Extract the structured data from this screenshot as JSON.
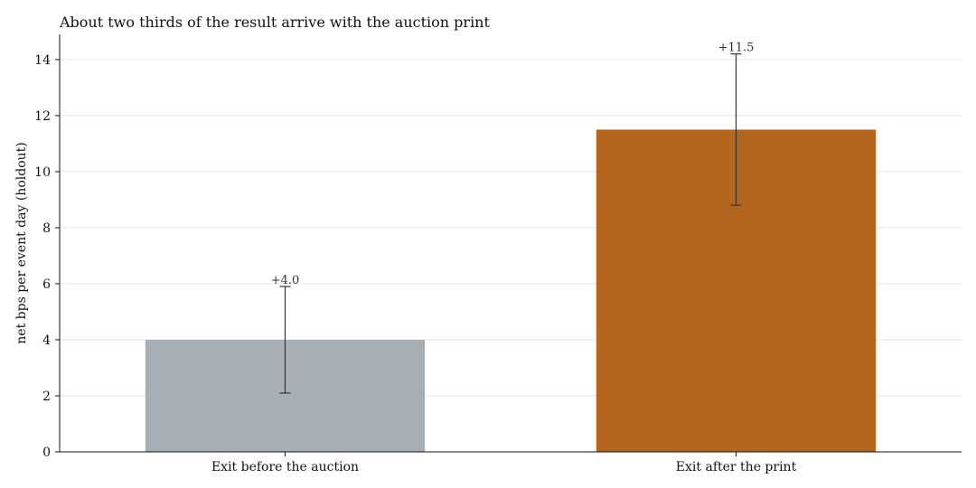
{
  "chart_data": {
    "type": "bar",
    "title": "About two thirds of the result arrive with the auction print",
    "xlabel": "",
    "ylabel": "net bps per event day (holdout)",
    "ylim": [
      0,
      14.9
    ],
    "yticks": [
      0,
      2,
      4,
      6,
      8,
      10,
      12,
      14
    ],
    "grid": true,
    "categories": [
      "Exit before the auction",
      "Exit after the print"
    ],
    "values": [
      4.0,
      11.5
    ],
    "error_low": [
      2.1,
      8.8
    ],
    "error_high": [
      5.9,
      14.2
    ],
    "data_labels": [
      "+4.0",
      "+11.5"
    ],
    "colors": [
      "#a8aeb6",
      "#b5661e"
    ]
  }
}
